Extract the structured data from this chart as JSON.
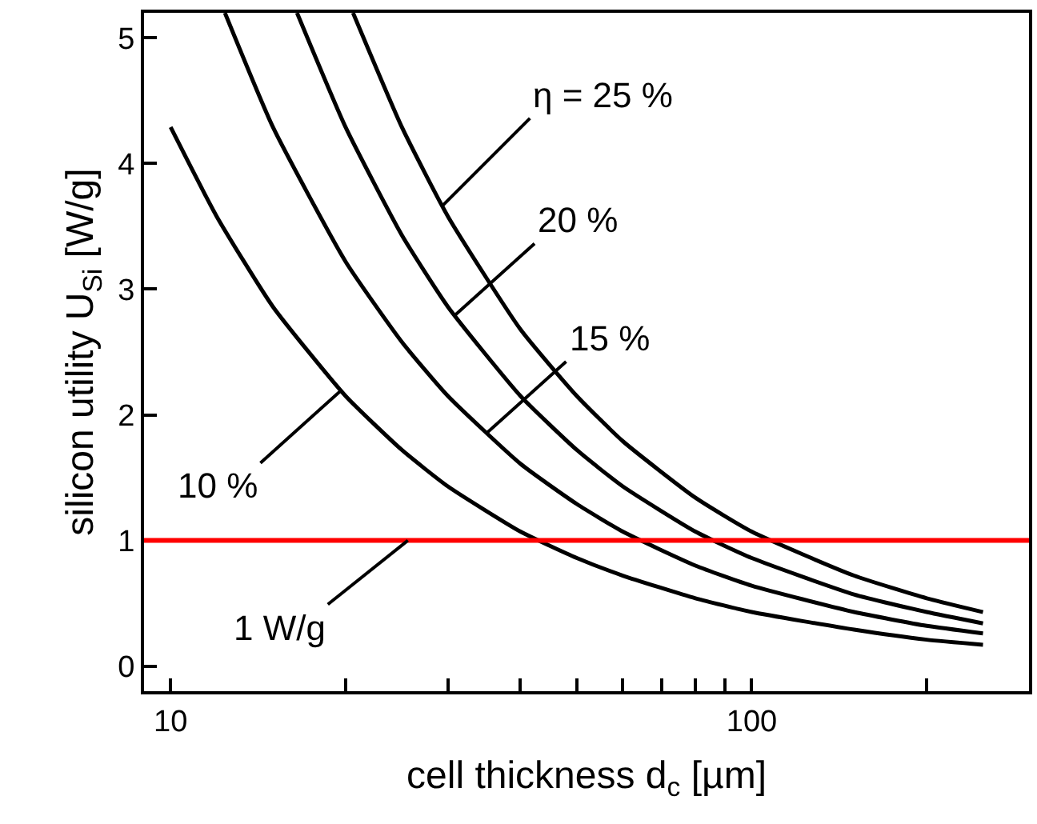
{
  "chart_data": {
    "type": "line",
    "xlabel": "cell thickness d$_{c}$ [µm]",
    "ylabel": "silicon utility U$_{Si}$ [W/g]",
    "log": "x",
    "marker": "none",
    "line_style": "solid",
    "xlim": [
      9,
      300
    ],
    "ylim": [
      -0.2,
      5.2
    ],
    "xticks": [
      10,
      {
        "value": 20,
        "label": null
      },
      {
        "value": 30,
        "label": null
      },
      {
        "value": 40,
        "label": null
      },
      {
        "value": 50,
        "label": null
      },
      {
        "value": 60,
        "label": null
      },
      {
        "value": 70,
        "label": null
      },
      {
        "value": 80,
        "label": null
      },
      {
        "value": 90,
        "label": null
      },
      100,
      {
        "value": 200,
        "label": null
      },
      {
        "value": 300,
        "label": null
      }
    ],
    "yticks": [
      0,
      1,
      2,
      3,
      4,
      5
    ],
    "series": [
      {
        "color": "#000000",
        "x": [
          10,
          12,
          15,
          20,
          25,
          30,
          40,
          50,
          60,
          80,
          100,
          150,
          200,
          250
        ],
        "values": [
          4.29,
          3.58,
          2.86,
          2.15,
          1.72,
          1.43,
          1.07,
          0.86,
          0.72,
          0.54,
          0.43,
          0.29,
          0.21,
          0.17
        ]
      },
      {
        "color": "#000000",
        "x": [
          12.4,
          15,
          20,
          25,
          30,
          40,
          50,
          60,
          80,
          100,
          150,
          200,
          250
        ],
        "values": [
          5.2,
          4.29,
          3.22,
          2.58,
          2.15,
          1.61,
          1.29,
          1.07,
          0.8,
          0.64,
          0.43,
          0.32,
          0.26
        ]
      },
      {
        "color": "#000000",
        "x": [
          16.5,
          20,
          25,
          30,
          40,
          50,
          60,
          80,
          100,
          150,
          200,
          250
        ],
        "values": [
          5.2,
          4.29,
          3.43,
          2.86,
          2.15,
          1.72,
          1.43,
          1.07,
          0.86,
          0.57,
          0.43,
          0.34
        ]
      },
      {
        "color": "#000000",
        "x": [
          20.6,
          25,
          30,
          40,
          50,
          60,
          80,
          100,
          150,
          200,
          250
        ],
        "values": [
          5.2,
          4.29,
          3.58,
          2.68,
          2.15,
          1.79,
          1.34,
          1.07,
          0.72,
          0.54,
          0.43
        ]
      }
    ],
    "ref_lines": [
      {
        "axis": "y",
        "value": 1,
        "color": "#ff0000"
      }
    ],
    "annotations": [
      {
        "text": "η = 25 %",
        "x": 29.3,
        "y": 3.66
      },
      {
        "text": "20 %",
        "x": 30.8,
        "y": 2.79
      },
      {
        "text": "15 %",
        "x": 34.9,
        "y": 1.85
      },
      {
        "text": "10 %",
        "x": 19.6,
        "y": 2.19
      },
      {
        "text": "1 W/g",
        "x": 25.6,
        "y": 1
      }
    ]
  }
}
